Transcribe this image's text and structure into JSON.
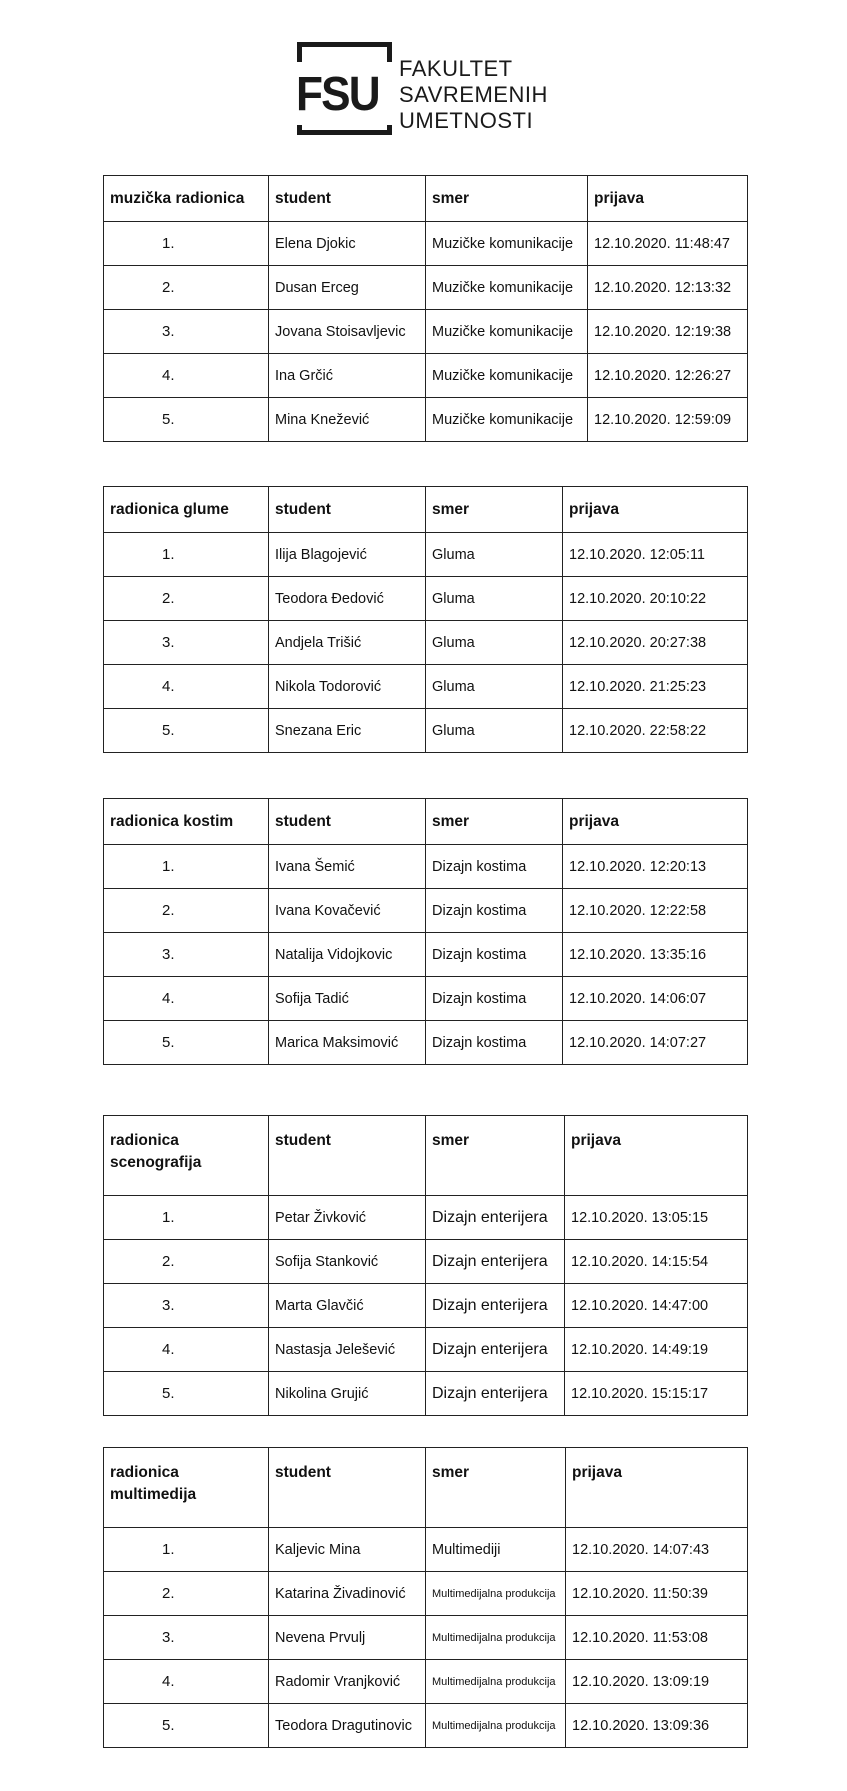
{
  "logo": {
    "mark": "FSU",
    "lines": [
      "FAKULTET",
      "SAVREMENIH",
      "UMETNOSTI"
    ]
  },
  "tables": [
    {
      "title": "muzička radionica",
      "headers": [
        "student",
        "smer",
        "prijava"
      ],
      "rows": [
        [
          "1.",
          "Elena Djokic",
          "Muzičke komunikacije",
          "12.10.2020. 11:48:47"
        ],
        [
          "2.",
          "Dusan Erceg",
          "Muzičke komunikacije",
          "12.10.2020. 12:13:32"
        ],
        [
          "3.",
          "Jovana Stoisavljevic",
          "Muzičke komunikacije",
          "12.10.2020. 12:19:38"
        ],
        [
          "4.",
          "Ina Grčić",
          "Muzičke komunikacije",
          "12.10.2020. 12:26:27"
        ],
        [
          "5.",
          "Mina Knežević",
          "Muzičke komunikacije",
          "12.10.2020. 12:59:09"
        ]
      ]
    },
    {
      "title": "radionica glume",
      "headers": [
        "student",
        "smer",
        "prijava"
      ],
      "rows": [
        [
          "1.",
          "Ilija Blagojević",
          "Gluma",
          "12.10.2020. 12:05:11"
        ],
        [
          "2.",
          "Teodora Đedović",
          "Gluma",
          "12.10.2020. 20:10:22"
        ],
        [
          "3.",
          "Andjela Trišić",
          "Gluma",
          "12.10.2020. 20:27:38"
        ],
        [
          "4.",
          "Nikola Todorović",
          "Gluma",
          "12.10.2020. 21:25:23"
        ],
        [
          "5.",
          "Snezana Eric",
          "Gluma",
          "12.10.2020. 22:58:22"
        ]
      ]
    },
    {
      "title": "radionica kostim",
      "headers": [
        "student",
        "smer",
        "prijava"
      ],
      "rows": [
        [
          "1.",
          "Ivana Šemić",
          "Dizajn kostima",
          "12.10.2020. 12:20:13"
        ],
        [
          "2.",
          "Ivana Kovačević",
          "Dizajn kostima",
          "12.10.2020. 12:22:58"
        ],
        [
          "3.",
          "Natalija Vidojkovic",
          "Dizajn kostima",
          "12.10.2020. 13:35:16"
        ],
        [
          "4.",
          "Sofija Tadić",
          "Dizajn kostima",
          "12.10.2020. 14:06:07"
        ],
        [
          "5.",
          "Marica Maksimović",
          "Dizajn kostima",
          "12.10.2020. 14:07:27"
        ]
      ]
    },
    {
      "title": "radionica scenografija",
      "headers": [
        "student",
        "smer",
        "prijava"
      ],
      "rows": [
        [
          "1.",
          "Petar Živković",
          "Dizajn enterijera",
          "12.10.2020. 13:05:15"
        ],
        [
          "2.",
          "Sofija Stanković",
          "Dizajn enterijera",
          "12.10.2020. 14:15:54"
        ],
        [
          "3.",
          "Marta Glavčić",
          "Dizajn enterijera",
          "12.10.2020. 14:47:00"
        ],
        [
          "4.",
          "Nastasja Jelešević",
          "Dizajn enterijera",
          "12.10.2020. 14:49:19"
        ],
        [
          "5.",
          "Nikolina Grujić",
          "Dizajn enterijera",
          "12.10.2020. 15:15:17"
        ]
      ]
    },
    {
      "title": "radionica multimedija",
      "headers": [
        "student",
        "smer",
        "prijava"
      ],
      "rows": [
        [
          "1.",
          "Kaljevic Mina",
          "Multimediji",
          "12.10.2020. 14:07:43"
        ],
        [
          "2.",
          "Katarina Živadinović",
          "Multimedijalna produkcija",
          "12.10.2020. 11:50:39"
        ],
        [
          "3.",
          "Nevena Prvulj",
          "Multimedijalna produkcija",
          "12.10.2020. 11:53:08"
        ],
        [
          "4.",
          "Radomir Vranjković",
          "Multimedijalna produkcija",
          "12.10.2020. 13:09:19"
        ],
        [
          "5.",
          "Teodora Dragutinovic",
          "Multimedijalna produkcija",
          "12.10.2020. 13:09:36"
        ]
      ]
    }
  ]
}
